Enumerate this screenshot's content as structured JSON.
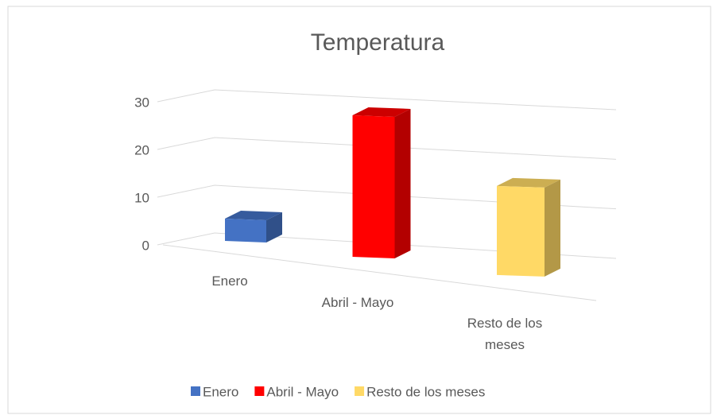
{
  "chart_data": {
    "type": "bar3d",
    "title": "Temperatura",
    "categories": [
      "Enero",
      "Abril - Mayo",
      "Resto de los meses"
    ],
    "values": [
      5,
      30,
      19
    ],
    "colors": [
      "#4472c4",
      "#ff0000",
      "#ffd966"
    ],
    "ylim": [
      0,
      30
    ],
    "yticks": [
      0,
      10,
      20,
      30
    ],
    "grid": true,
    "legend": "bottom"
  }
}
